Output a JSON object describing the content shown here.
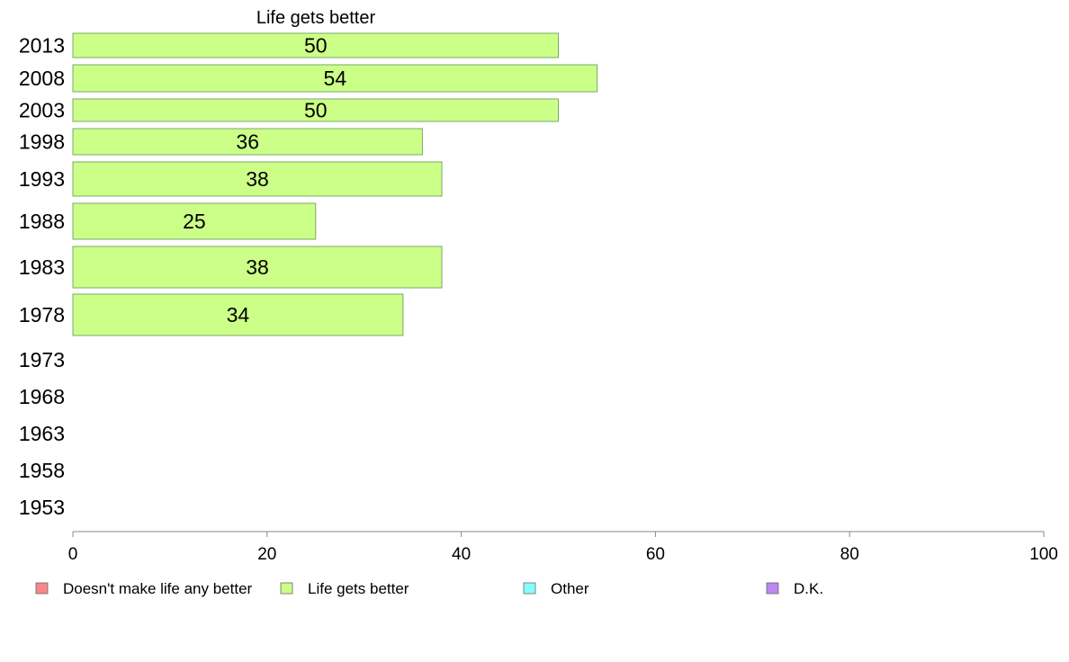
{
  "chart_data": {
    "type": "bar",
    "orientation": "horizontal",
    "title": "Life gets better",
    "xlabel": "",
    "ylabel": "",
    "xlim": [
      0,
      100
    ],
    "xticks": [
      0,
      20,
      40,
      60,
      80,
      100
    ],
    "grid": false,
    "legend_position": "bottom",
    "categories": [
      "2013",
      "2008",
      "2003",
      "1998",
      "1993",
      "1988",
      "1983",
      "1978",
      "1973",
      "1968",
      "1963",
      "1958",
      "1953"
    ],
    "series": [
      {
        "name": "Life gets better",
        "color": "#ccff88",
        "values": [
          50,
          54,
          50,
          36,
          38,
          25,
          38,
          34,
          null,
          null,
          null,
          null,
          null
        ],
        "labels": [
          "50",
          "54",
          "50",
          "36",
          "38",
          "25",
          "38",
          "34",
          "",
          "",
          "",
          "",
          ""
        ]
      }
    ],
    "legend": [
      {
        "name": "Doesn't make life any better",
        "color": "#f88888"
      },
      {
        "name": "Life gets better",
        "color": "#ccff88"
      },
      {
        "name": "Other",
        "color": "#88ffff"
      },
      {
        "name": "D.K.",
        "color": "#bb88ee"
      }
    ]
  }
}
